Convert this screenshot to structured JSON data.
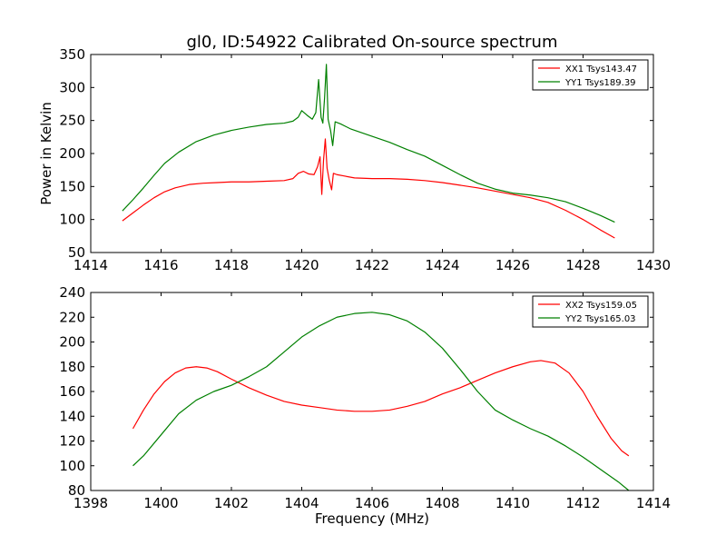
{
  "title": "gl0, ID:54922 Calibrated On-source spectrum",
  "chart_data": [
    {
      "type": "line",
      "xlim": [
        1414,
        1430
      ],
      "ylim": [
        50,
        350
      ],
      "xticks": [
        "1414",
        "1416",
        "1418",
        "1420",
        "1422",
        "1424",
        "1426",
        "1428",
        "1430"
      ],
      "yticks": [
        "50",
        "100",
        "150",
        "200",
        "250",
        "300",
        "350"
      ],
      "xlabel": "",
      "ylabel": "Power in Kelvin",
      "legend_position": "top-right",
      "grid": false,
      "series": [
        {
          "name": "XX1 Tsys143.47",
          "color": "#ff0000",
          "x": [
            1414.9,
            1415.2,
            1415.5,
            1415.8,
            1416.1,
            1416.4,
            1416.8,
            1417.2,
            1417.6,
            1418.0,
            1418.5,
            1419.0,
            1419.5,
            1419.75,
            1419.9,
            1420.05,
            1420.2,
            1420.35,
            1420.45,
            1420.52,
            1420.57,
            1420.62,
            1420.67,
            1420.72,
            1420.78,
            1420.85,
            1420.9,
            1421.0,
            1421.2,
            1421.5,
            1422.0,
            1422.5,
            1423.0,
            1423.5,
            1424.0,
            1424.5,
            1425.0,
            1425.5,
            1426.0,
            1426.5,
            1427.0,
            1427.5,
            1428.0,
            1428.5,
            1428.9
          ],
          "y": [
            98,
            110,
            122,
            133,
            142,
            148,
            153,
            155,
            156,
            157,
            157,
            158,
            159,
            162,
            170,
            173,
            169,
            168,
            180,
            195,
            138,
            190,
            222,
            178,
            160,
            145,
            170,
            168,
            166,
            163,
            162,
            162,
            161,
            159,
            156,
            152,
            148,
            143,
            138,
            133,
            126,
            114,
            100,
            84,
            72
          ]
        },
        {
          "name": "YY1 Tsys189.39",
          "color": "#008000",
          "x": [
            1414.9,
            1415.2,
            1415.5,
            1415.8,
            1416.1,
            1416.5,
            1417.0,
            1417.5,
            1418.0,
            1418.5,
            1419.0,
            1419.5,
            1419.75,
            1419.9,
            1420.0,
            1420.15,
            1420.3,
            1420.4,
            1420.48,
            1420.55,
            1420.6,
            1420.65,
            1420.7,
            1420.75,
            1420.82,
            1420.88,
            1420.95,
            1421.1,
            1421.4,
            1422.0,
            1422.5,
            1423.0,
            1423.5,
            1424.0,
            1424.5,
            1425.0,
            1425.5,
            1426.0,
            1426.5,
            1427.0,
            1427.5,
            1428.0,
            1428.5,
            1428.9
          ],
          "y": [
            113,
            130,
            148,
            167,
            185,
            202,
            218,
            228,
            235,
            240,
            244,
            246,
            249,
            255,
            265,
            258,
            252,
            262,
            312,
            255,
            246,
            285,
            335,
            252,
            235,
            212,
            248,
            245,
            237,
            226,
            217,
            206,
            196,
            182,
            168,
            155,
            146,
            140,
            137,
            133,
            127,
            117,
            106,
            96
          ]
        }
      ]
    },
    {
      "type": "line",
      "xlim": [
        1398,
        1414
      ],
      "ylim": [
        80,
        240
      ],
      "xticks": [
        "1398",
        "1400",
        "1402",
        "1404",
        "1406",
        "1408",
        "1410",
        "1412",
        "1414"
      ],
      "yticks": [
        "80",
        "100",
        "120",
        "140",
        "160",
        "180",
        "200",
        "220",
        "240"
      ],
      "xlabel": "Frequency (MHz)",
      "ylabel": "",
      "legend_position": "top-right",
      "grid": false,
      "series": [
        {
          "name": "XX2 Tsys159.05",
          "color": "#ff0000",
          "x": [
            1399.2,
            1399.5,
            1399.8,
            1400.1,
            1400.4,
            1400.7,
            1401.0,
            1401.3,
            1401.6,
            1402.0,
            1402.5,
            1403.0,
            1403.5,
            1404.0,
            1404.5,
            1405.0,
            1405.5,
            1406.0,
            1406.5,
            1407.0,
            1407.5,
            1408.0,
            1408.5,
            1409.0,
            1409.5,
            1410.0,
            1410.5,
            1410.8,
            1411.2,
            1411.6,
            1412.0,
            1412.4,
            1412.8,
            1413.1,
            1413.3
          ],
          "y": [
            130,
            145,
            158,
            168,
            175,
            179,
            180,
            179,
            176,
            170,
            163,
            157,
            152,
            149,
            147,
            145,
            144,
            144,
            145,
            148,
            152,
            158,
            163,
            169,
            175,
            180,
            184,
            185,
            183,
            175,
            160,
            140,
            122,
            112,
            108
          ]
        },
        {
          "name": "YY2 Tsys165.03",
          "color": "#008000",
          "x": [
            1399.2,
            1399.5,
            1400.0,
            1400.5,
            1401.0,
            1401.5,
            1402.0,
            1402.5,
            1403.0,
            1403.5,
            1404.0,
            1404.5,
            1405.0,
            1405.5,
            1406.0,
            1406.5,
            1407.0,
            1407.5,
            1408.0,
            1408.5,
            1409.0,
            1409.5,
            1410.0,
            1410.5,
            1411.0,
            1411.5,
            1412.0,
            1412.5,
            1413.0,
            1413.3
          ],
          "y": [
            100,
            108,
            125,
            142,
            153,
            160,
            165,
            172,
            180,
            192,
            204,
            213,
            220,
            223,
            224,
            222,
            217,
            208,
            195,
            178,
            160,
            145,
            137,
            130,
            124,
            116,
            107,
            97,
            87,
            80
          ]
        }
      ]
    }
  ]
}
